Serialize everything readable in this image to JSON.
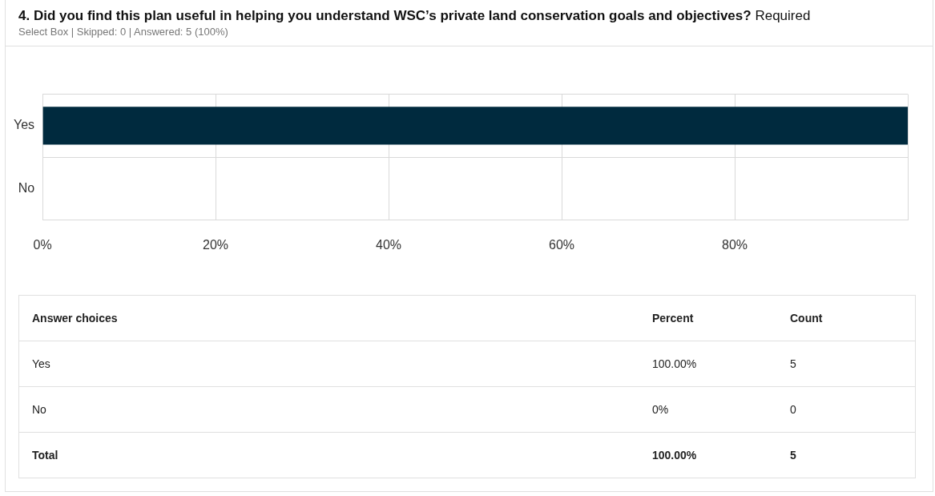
{
  "chart_data": {
    "type": "bar",
    "orientation": "horizontal",
    "title": "4. Did you find this plan useful in helping you understand WSC’s private land conservation goals and objectives?",
    "subtitle": "Select Box | Skipped: 0 | Answered: 5 (100%)",
    "annotations": [
      "Required",
      "Answer choices",
      "Percent",
      "Count",
      "100.00%",
      "5",
      "0%",
      "0",
      "Total",
      "100.00%",
      "5"
    ],
    "categories": [
      "Yes",
      "No"
    ],
    "values": [
      100,
      0
    ],
    "color": "#002a3e",
    "xlim": [
      0,
      100
    ],
    "xticks": [
      {
        "value": 0,
        "label": "0%"
      },
      {
        "value": 20,
        "label": "20%"
      },
      {
        "value": 40,
        "label": "40%"
      },
      {
        "value": 60,
        "label": "60%"
      },
      {
        "value": 80,
        "label": "80%"
      },
      {
        "value": 100,
        "label": null
      }
    ],
    "grid": true,
    "legend": false
  }
}
